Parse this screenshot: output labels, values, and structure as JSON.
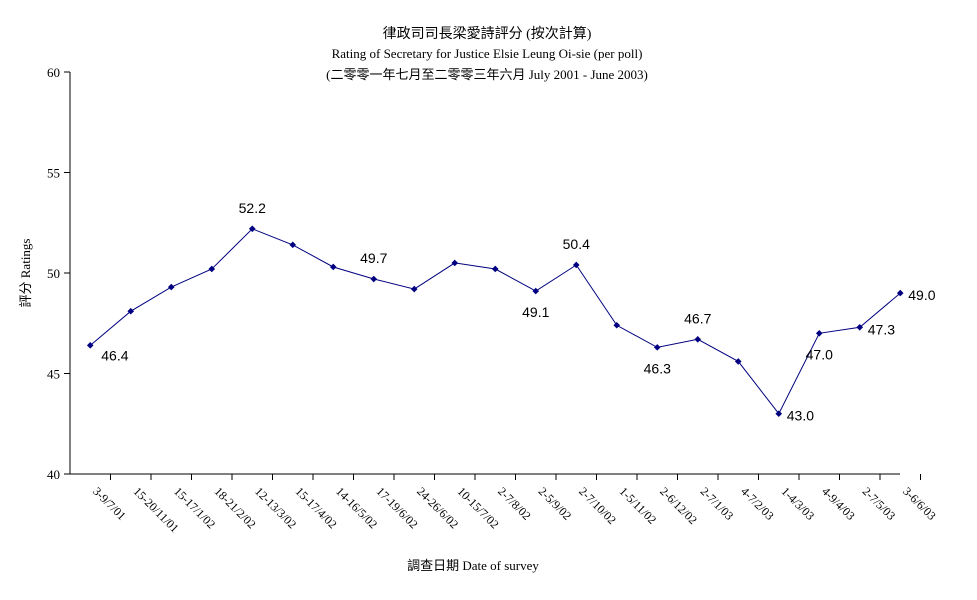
{
  "chart_data": {
    "type": "line",
    "title": "律政司司長梁愛詩評分 (按次計算)",
    "subtitle": "Rating of Secretary for Justice Elsie Leung Oi-sie  (per poll)",
    "period": "(二零零一年七月至二零零三年六月 July 2001 - June 2003)",
    "xlabel": "調查日期 Date of survey",
    "ylabel": "評分 Ratings",
    "ylim": [
      40,
      60
    ],
    "yticks": [
      "40",
      "45",
      "50",
      "55",
      "60"
    ],
    "grid": false,
    "categories": [
      "3-9/7/01",
      "15-20/11/01",
      "15-17/1/02",
      "18-21/2/02",
      "12-13/3/02",
      "15-17/4/02",
      "14-16/5/02",
      "17-19/6/02",
      "24-26/6/02",
      "10-15/7/02",
      "2-7/8/02",
      "2-5/9/02",
      "2-7/10/02",
      "1-5/11/02",
      "2-6/12/02",
      "2-7/1/03",
      "4-7/2/03",
      "1-4/3/03",
      "4-9/4/03",
      "2-7/5/03",
      "3-6/6/03"
    ],
    "series": [
      {
        "values": [
          46.4,
          48.1,
          49.3,
          50.2,
          52.2,
          51.4,
          50.3,
          49.7,
          49.2,
          50.5,
          50.2,
          49.1,
          50.4,
          47.4,
          46.3,
          46.7,
          45.6,
          43.0,
          47.0,
          47.3,
          49.0
        ],
        "color": "#000080"
      }
    ],
    "data_labels": [
      {
        "index": 0,
        "text": "46.4",
        "position": "below-right"
      },
      {
        "index": 4,
        "text": "52.2",
        "position": "above"
      },
      {
        "index": 7,
        "text": "49.7",
        "position": "above"
      },
      {
        "index": 11,
        "text": "49.1",
        "position": "below"
      },
      {
        "index": 12,
        "text": "50.4",
        "position": "above"
      },
      {
        "index": 14,
        "text": "46.3",
        "position": "below"
      },
      {
        "index": 15,
        "text": "46.7",
        "position": "above"
      },
      {
        "index": 17,
        "text": "43.0",
        "position": "right"
      },
      {
        "index": 18,
        "text": "47.0",
        "position": "below"
      },
      {
        "index": 19,
        "text": "47.3",
        "position": "right"
      },
      {
        "index": 20,
        "text": "49.0",
        "position": "right"
      }
    ]
  }
}
